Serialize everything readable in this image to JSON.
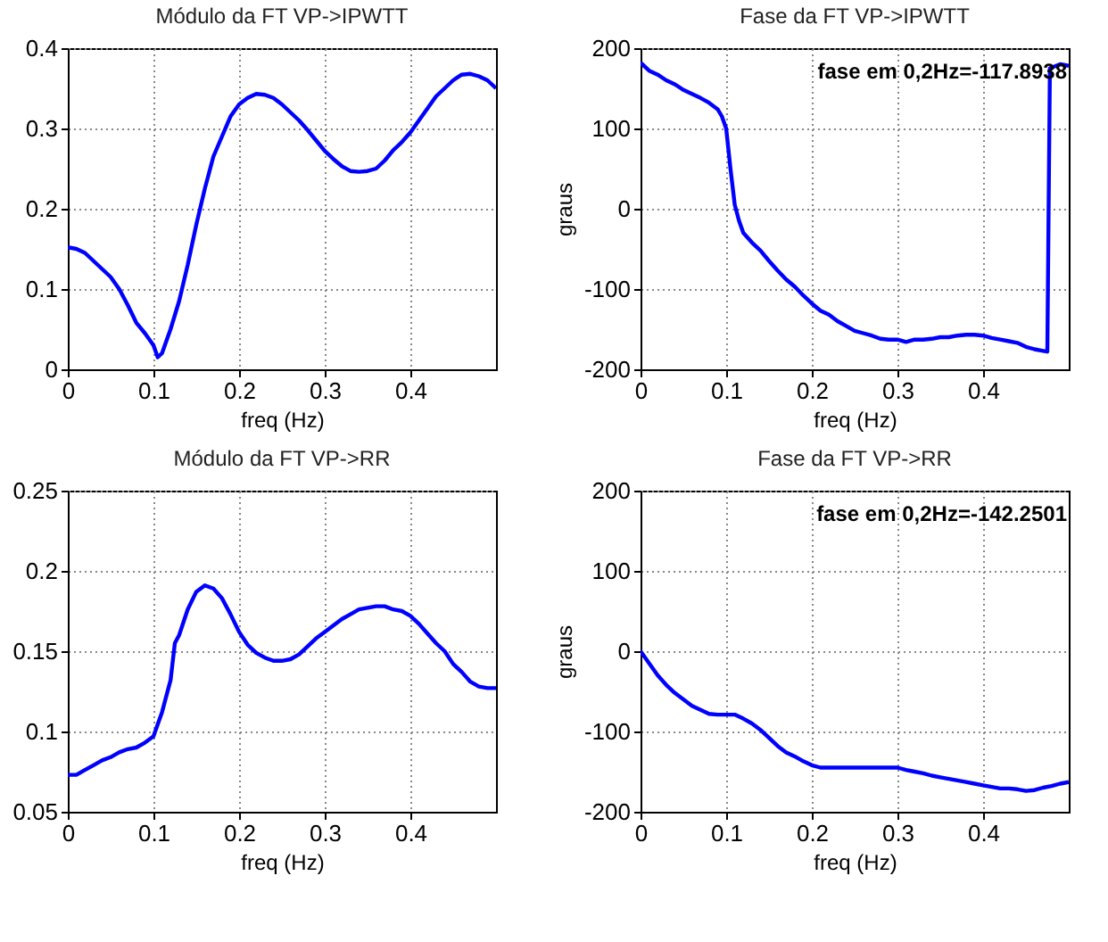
{
  "chart_data": [
    {
      "type": "line",
      "title": "Módulo da FT VP->IPWTT",
      "xlabel": "freq (Hz)",
      "xlim": [
        0,
        0.5
      ],
      "xticks": [
        0,
        0.1,
        0.2,
        0.3,
        0.4
      ],
      "ylim": [
        0,
        0.4
      ],
      "yticks": [
        0,
        0.1,
        0.2,
        0.3,
        0.4
      ],
      "grid": true,
      "x": [
        0,
        0.01,
        0.02,
        0.03,
        0.04,
        0.05,
        0.06,
        0.07,
        0.08,
        0.09,
        0.1,
        0.105,
        0.11,
        0.12,
        0.13,
        0.14,
        0.15,
        0.16,
        0.17,
        0.18,
        0.19,
        0.2,
        0.21,
        0.22,
        0.23,
        0.24,
        0.25,
        0.26,
        0.27,
        0.28,
        0.29,
        0.3,
        0.31,
        0.32,
        0.33,
        0.34,
        0.35,
        0.36,
        0.37,
        0.38,
        0.39,
        0.4,
        0.41,
        0.42,
        0.43,
        0.44,
        0.45,
        0.46,
        0.47,
        0.48,
        0.49,
        0.5
      ],
      "series": [
        {
          "color": "#0000ff",
          "values": [
            0.152,
            0.15,
            0.145,
            0.135,
            0.125,
            0.115,
            0.1,
            0.08,
            0.058,
            0.045,
            0.03,
            0.015,
            0.02,
            0.05,
            0.085,
            0.13,
            0.18,
            0.225,
            0.265,
            0.29,
            0.315,
            0.33,
            0.338,
            0.343,
            0.342,
            0.338,
            0.33,
            0.32,
            0.31,
            0.298,
            0.285,
            0.272,
            0.262,
            0.253,
            0.247,
            0.246,
            0.247,
            0.25,
            0.26,
            0.273,
            0.283,
            0.295,
            0.31,
            0.325,
            0.34,
            0.35,
            0.36,
            0.367,
            0.368,
            0.365,
            0.36,
            0.35
          ]
        }
      ]
    },
    {
      "type": "line",
      "title": "Fase da FT VP->IPWTT",
      "xlabel": "freq (Hz)",
      "ylabel": "graus",
      "xlim": [
        0,
        0.5
      ],
      "xticks": [
        0,
        0.1,
        0.2,
        0.3,
        0.4
      ],
      "ylim": [
        -200,
        200
      ],
      "yticks": [
        -200,
        -100,
        0,
        100,
        200
      ],
      "grid": true,
      "annotations": [
        "fase em 0,2Hz=-117.8938"
      ],
      "x": [
        0,
        0.01,
        0.02,
        0.03,
        0.04,
        0.05,
        0.06,
        0.07,
        0.08,
        0.09,
        0.095,
        0.1,
        0.105,
        0.11,
        0.115,
        0.12,
        0.13,
        0.14,
        0.15,
        0.16,
        0.17,
        0.18,
        0.19,
        0.2,
        0.21,
        0.22,
        0.23,
        0.24,
        0.25,
        0.26,
        0.27,
        0.28,
        0.29,
        0.3,
        0.31,
        0.32,
        0.33,
        0.34,
        0.35,
        0.36,
        0.37,
        0.38,
        0.39,
        0.4,
        0.41,
        0.42,
        0.43,
        0.44,
        0.45,
        0.46,
        0.47,
        0.475,
        0.478,
        0.49,
        0.5
      ],
      "series": [
        {
          "color": "#0000ff",
          "values": [
            182,
            172,
            167,
            160,
            155,
            148,
            143,
            138,
            132,
            124,
            115,
            100,
            50,
            5,
            -15,
            -30,
            -42,
            -52,
            -65,
            -77,
            -88,
            -97,
            -108,
            -118,
            -127,
            -132,
            -140,
            -146,
            -152,
            -155,
            -158,
            -162,
            -163,
            -163,
            -166,
            -163,
            -163,
            -162,
            -160,
            -160,
            -158,
            -157,
            -157,
            -158,
            -161,
            -163,
            -165,
            -167,
            -172,
            -175,
            -177,
            -178,
            175,
            180,
            178
          ]
        }
      ]
    },
    {
      "type": "line",
      "title": "Módulo da FT VP->RR",
      "xlabel": "freq (Hz)",
      "xlim": [
        0,
        0.5
      ],
      "xticks": [
        0,
        0.1,
        0.2,
        0.3,
        0.4
      ],
      "ylim": [
        0.05,
        0.25
      ],
      "yticks": [
        0.05,
        0.1,
        0.15,
        0.2,
        0.25
      ],
      "grid": true,
      "x": [
        0,
        0.01,
        0.02,
        0.03,
        0.04,
        0.05,
        0.06,
        0.07,
        0.08,
        0.09,
        0.1,
        0.11,
        0.12,
        0.125,
        0.13,
        0.14,
        0.15,
        0.16,
        0.17,
        0.18,
        0.19,
        0.2,
        0.21,
        0.22,
        0.23,
        0.24,
        0.25,
        0.26,
        0.27,
        0.28,
        0.29,
        0.3,
        0.31,
        0.32,
        0.33,
        0.34,
        0.35,
        0.36,
        0.37,
        0.38,
        0.39,
        0.4,
        0.41,
        0.42,
        0.43,
        0.44,
        0.45,
        0.46,
        0.47,
        0.48,
        0.49,
        0.5
      ],
      "series": [
        {
          "color": "#0000ff",
          "values": [
            0.073,
            0.073,
            0.076,
            0.079,
            0.082,
            0.084,
            0.087,
            0.089,
            0.09,
            0.093,
            0.097,
            0.112,
            0.132,
            0.155,
            0.16,
            0.176,
            0.187,
            0.191,
            0.189,
            0.183,
            0.173,
            0.162,
            0.154,
            0.149,
            0.146,
            0.144,
            0.144,
            0.145,
            0.148,
            0.153,
            0.158,
            0.162,
            0.166,
            0.17,
            0.173,
            0.176,
            0.177,
            0.178,
            0.178,
            0.176,
            0.175,
            0.172,
            0.167,
            0.161,
            0.155,
            0.15,
            0.142,
            0.137,
            0.131,
            0.128,
            0.127,
            0.127
          ]
        }
      ]
    },
    {
      "type": "line",
      "title": "Fase da FT VP->RR",
      "xlabel": "freq (Hz)",
      "ylabel": "graus",
      "xlim": [
        0,
        0.5
      ],
      "xticks": [
        0,
        0.1,
        0.2,
        0.3,
        0.4
      ],
      "ylim": [
        -200,
        200
      ],
      "yticks": [
        -200,
        -100,
        0,
        100,
        200
      ],
      "grid": true,
      "annotations": [
        "fase em 0,2Hz=-142.2501"
      ],
      "x": [
        0,
        0.01,
        0.02,
        0.03,
        0.04,
        0.05,
        0.06,
        0.07,
        0.08,
        0.09,
        0.1,
        0.11,
        0.12,
        0.13,
        0.14,
        0.15,
        0.16,
        0.17,
        0.18,
        0.19,
        0.2,
        0.21,
        0.22,
        0.25,
        0.3,
        0.31,
        0.32,
        0.33,
        0.34,
        0.35,
        0.36,
        0.37,
        0.38,
        0.39,
        0.4,
        0.41,
        0.42,
        0.43,
        0.44,
        0.45,
        0.46,
        0.47,
        0.48,
        0.49,
        0.5
      ],
      "series": [
        {
          "color": "#0000ff",
          "values": [
            0,
            -15,
            -30,
            -42,
            -52,
            -60,
            -68,
            -73,
            -78,
            -79,
            -79,
            -79,
            -84,
            -90,
            -98,
            -108,
            -118,
            -126,
            -131,
            -137,
            -142,
            -145,
            -145,
            -145,
            -145,
            -148,
            -150,
            -152,
            -155,
            -157,
            -159,
            -161,
            -163,
            -165,
            -167,
            -169,
            -171,
            -171,
            -172,
            -174,
            -173,
            -170,
            -168,
            -165,
            -163
          ]
        }
      ]
    }
  ]
}
